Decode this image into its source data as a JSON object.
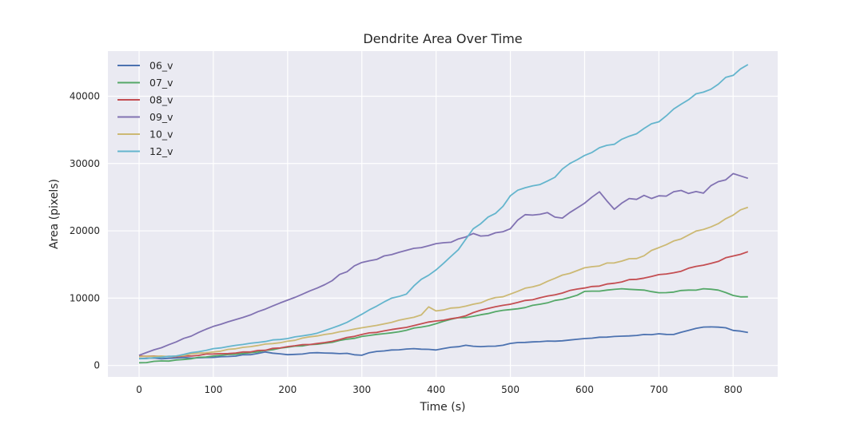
{
  "chart_data": {
    "type": "line",
    "title": "Dendrite Area Over Time",
    "xlabel": "Time (s)",
    "ylabel": "Area (pixels)",
    "xlim": [
      -42,
      860
    ],
    "ylim": [
      -1700,
      46700
    ],
    "xticks": [
      0,
      100,
      200,
      300,
      400,
      500,
      600,
      700,
      800
    ],
    "yticks": [
      0,
      10000,
      20000,
      30000,
      40000
    ],
    "grid": true,
    "legend_position": "top-left",
    "background": "#eaeaf2",
    "x_step": 10,
    "series": [
      {
        "name": "06_v",
        "color": "#4c72b0",
        "points": [
          [
            0,
            1000
          ],
          [
            50,
            1100
          ],
          [
            100,
            1200
          ],
          [
            150,
            1600
          ],
          [
            170,
            2000
          ],
          [
            200,
            1600
          ],
          [
            240,
            1900
          ],
          [
            280,
            1800
          ],
          [
            295,
            1400
          ],
          [
            310,
            1900
          ],
          [
            340,
            2300
          ],
          [
            370,
            2500
          ],
          [
            400,
            2300
          ],
          [
            420,
            2700
          ],
          [
            440,
            3000
          ],
          [
            460,
            2800
          ],
          [
            490,
            3000
          ],
          [
            510,
            3400
          ],
          [
            560,
            3600
          ],
          [
            600,
            4000
          ],
          [
            640,
            4300
          ],
          [
            700,
            4700
          ],
          [
            720,
            4600
          ],
          [
            740,
            5200
          ],
          [
            760,
            5700
          ],
          [
            790,
            5600
          ],
          [
            800,
            5200
          ],
          [
            820,
            4900
          ]
        ]
      },
      {
        "name": "07_v",
        "color": "#55a868",
        "points": [
          [
            0,
            400
          ],
          [
            50,
            800
          ],
          [
            100,
            1400
          ],
          [
            150,
            1900
          ],
          [
            200,
            2700
          ],
          [
            250,
            3300
          ],
          [
            300,
            4300
          ],
          [
            350,
            5000
          ],
          [
            400,
            6200
          ],
          [
            430,
            7100
          ],
          [
            450,
            7300
          ],
          [
            480,
            8000
          ],
          [
            500,
            8300
          ],
          [
            520,
            8600
          ],
          [
            550,
            9300
          ],
          [
            580,
            10100
          ],
          [
            600,
            11000
          ],
          [
            630,
            11200
          ],
          [
            650,
            11400
          ],
          [
            680,
            11200
          ],
          [
            700,
            10800
          ],
          [
            720,
            10900
          ],
          [
            740,
            11200
          ],
          [
            760,
            11400
          ],
          [
            780,
            11200
          ],
          [
            800,
            10400
          ],
          [
            820,
            10200
          ]
        ]
      },
      {
        "name": "08_v",
        "color": "#c44e52",
        "points": [
          [
            0,
            1400
          ],
          [
            50,
            1300
          ],
          [
            100,
            1700
          ],
          [
            150,
            2000
          ],
          [
            200,
            2800
          ],
          [
            250,
            3400
          ],
          [
            300,
            4600
          ],
          [
            350,
            5500
          ],
          [
            400,
            6600
          ],
          [
            430,
            7100
          ],
          [
            460,
            8200
          ],
          [
            500,
            9100
          ],
          [
            550,
            10300
          ],
          [
            600,
            11500
          ],
          [
            650,
            12400
          ],
          [
            700,
            13500
          ],
          [
            730,
            14000
          ],
          [
            760,
            14900
          ],
          [
            790,
            16000
          ],
          [
            820,
            16900
          ]
        ]
      },
      {
        "name": "09_v",
        "color": "#8172b2",
        "points": [
          [
            0,
            1500
          ],
          [
            50,
            3500
          ],
          [
            100,
            5800
          ],
          [
            150,
            7500
          ],
          [
            200,
            9700
          ],
          [
            250,
            12000
          ],
          [
            290,
            14800
          ],
          [
            300,
            15300
          ],
          [
            350,
            16800
          ],
          [
            380,
            17500
          ],
          [
            420,
            18300
          ],
          [
            450,
            19600
          ],
          [
            470,
            19300
          ],
          [
            500,
            20300
          ],
          [
            520,
            22400
          ],
          [
            550,
            22700
          ],
          [
            570,
            21900
          ],
          [
            600,
            24100
          ],
          [
            620,
            25800
          ],
          [
            640,
            23200
          ],
          [
            660,
            24800
          ],
          [
            700,
            25200
          ],
          [
            730,
            26000
          ],
          [
            760,
            25600
          ],
          [
            780,
            27300
          ],
          [
            800,
            28500
          ],
          [
            820,
            27800
          ]
        ]
      },
      {
        "name": "10_v",
        "color": "#ccb974",
        "points": [
          [
            0,
            1300
          ],
          [
            50,
            1400
          ],
          [
            100,
            2000
          ],
          [
            150,
            2800
          ],
          [
            200,
            3600
          ],
          [
            250,
            4600
          ],
          [
            300,
            5600
          ],
          [
            340,
            6400
          ],
          [
            380,
            7500
          ],
          [
            390,
            8700
          ],
          [
            400,
            8100
          ],
          [
            450,
            9100
          ],
          [
            500,
            10600
          ],
          [
            550,
            12500
          ],
          [
            600,
            14500
          ],
          [
            650,
            15500
          ],
          [
            680,
            16300
          ],
          [
            700,
            17500
          ],
          [
            730,
            18800
          ],
          [
            760,
            20200
          ],
          [
            790,
            21800
          ],
          [
            820,
            23500
          ]
        ]
      },
      {
        "name": "12_v",
        "color": "#64b5cd",
        "points": [
          [
            0,
            1000
          ],
          [
            50,
            1400
          ],
          [
            100,
            2500
          ],
          [
            150,
            3300
          ],
          [
            200,
            4000
          ],
          [
            240,
            4800
          ],
          [
            280,
            6400
          ],
          [
            300,
            7600
          ],
          [
            340,
            10000
          ],
          [
            360,
            10600
          ],
          [
            380,
            12800
          ],
          [
            400,
            14200
          ],
          [
            430,
            17200
          ],
          [
            450,
            20300
          ],
          [
            480,
            22600
          ],
          [
            500,
            25200
          ],
          [
            520,
            26400
          ],
          [
            550,
            27400
          ],
          [
            580,
            30000
          ],
          [
            600,
            31200
          ],
          [
            630,
            32700
          ],
          [
            650,
            33600
          ],
          [
            680,
            35200
          ],
          [
            700,
            36200
          ],
          [
            720,
            38100
          ],
          [
            760,
            40600
          ],
          [
            790,
            42800
          ],
          [
            820,
            44700
          ]
        ]
      }
    ]
  }
}
